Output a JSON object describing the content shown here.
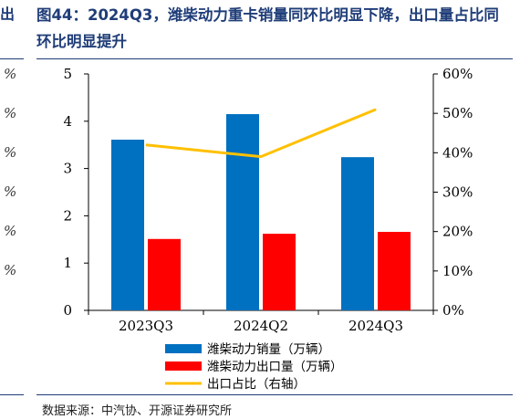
{
  "left_strip": {
    "glyph": "出",
    "tick_glyph": "%"
  },
  "title": "图44：2024Q3，潍柴动力重卡销量同环比明显下降，出口量占比同环比明显提升",
  "source": "数据来源：中汽协、开源证券研究所",
  "chart_data": {
    "type": "bar",
    "title": "",
    "xlabel": "",
    "ylabel": "",
    "categories": [
      "2023Q3",
      "2024Q2",
      "2024Q3"
    ],
    "ylim": [
      0,
      5
    ],
    "y_ticks": [
      0,
      1,
      2,
      3,
      4,
      5
    ],
    "y2lim": [
      0,
      0.6
    ],
    "y2_ticks": [
      0,
      0.1,
      0.2,
      0.3,
      0.4,
      0.5,
      0.6
    ],
    "y2_tick_labels": [
      "0%",
      "10%",
      "20%",
      "30%",
      "40%",
      "50%",
      "60%"
    ],
    "grid": false,
    "legend_position": "bottom",
    "series": [
      {
        "name": "潍柴动力销量（万辆）",
        "type": "bar",
        "axis": "left",
        "color": "#0070c0",
        "values": [
          3.61,
          4.15,
          3.24
        ]
      },
      {
        "name": "潍柴动力出口量（万辆）",
        "type": "bar",
        "axis": "left",
        "color": "#ff0000",
        "values": [
          1.51,
          1.62,
          1.66
        ]
      },
      {
        "name": "出口占比（右轴）",
        "type": "line",
        "axis": "right",
        "color": "#ffc000",
        "values": [
          0.42,
          0.39,
          0.51
        ]
      }
    ]
  }
}
